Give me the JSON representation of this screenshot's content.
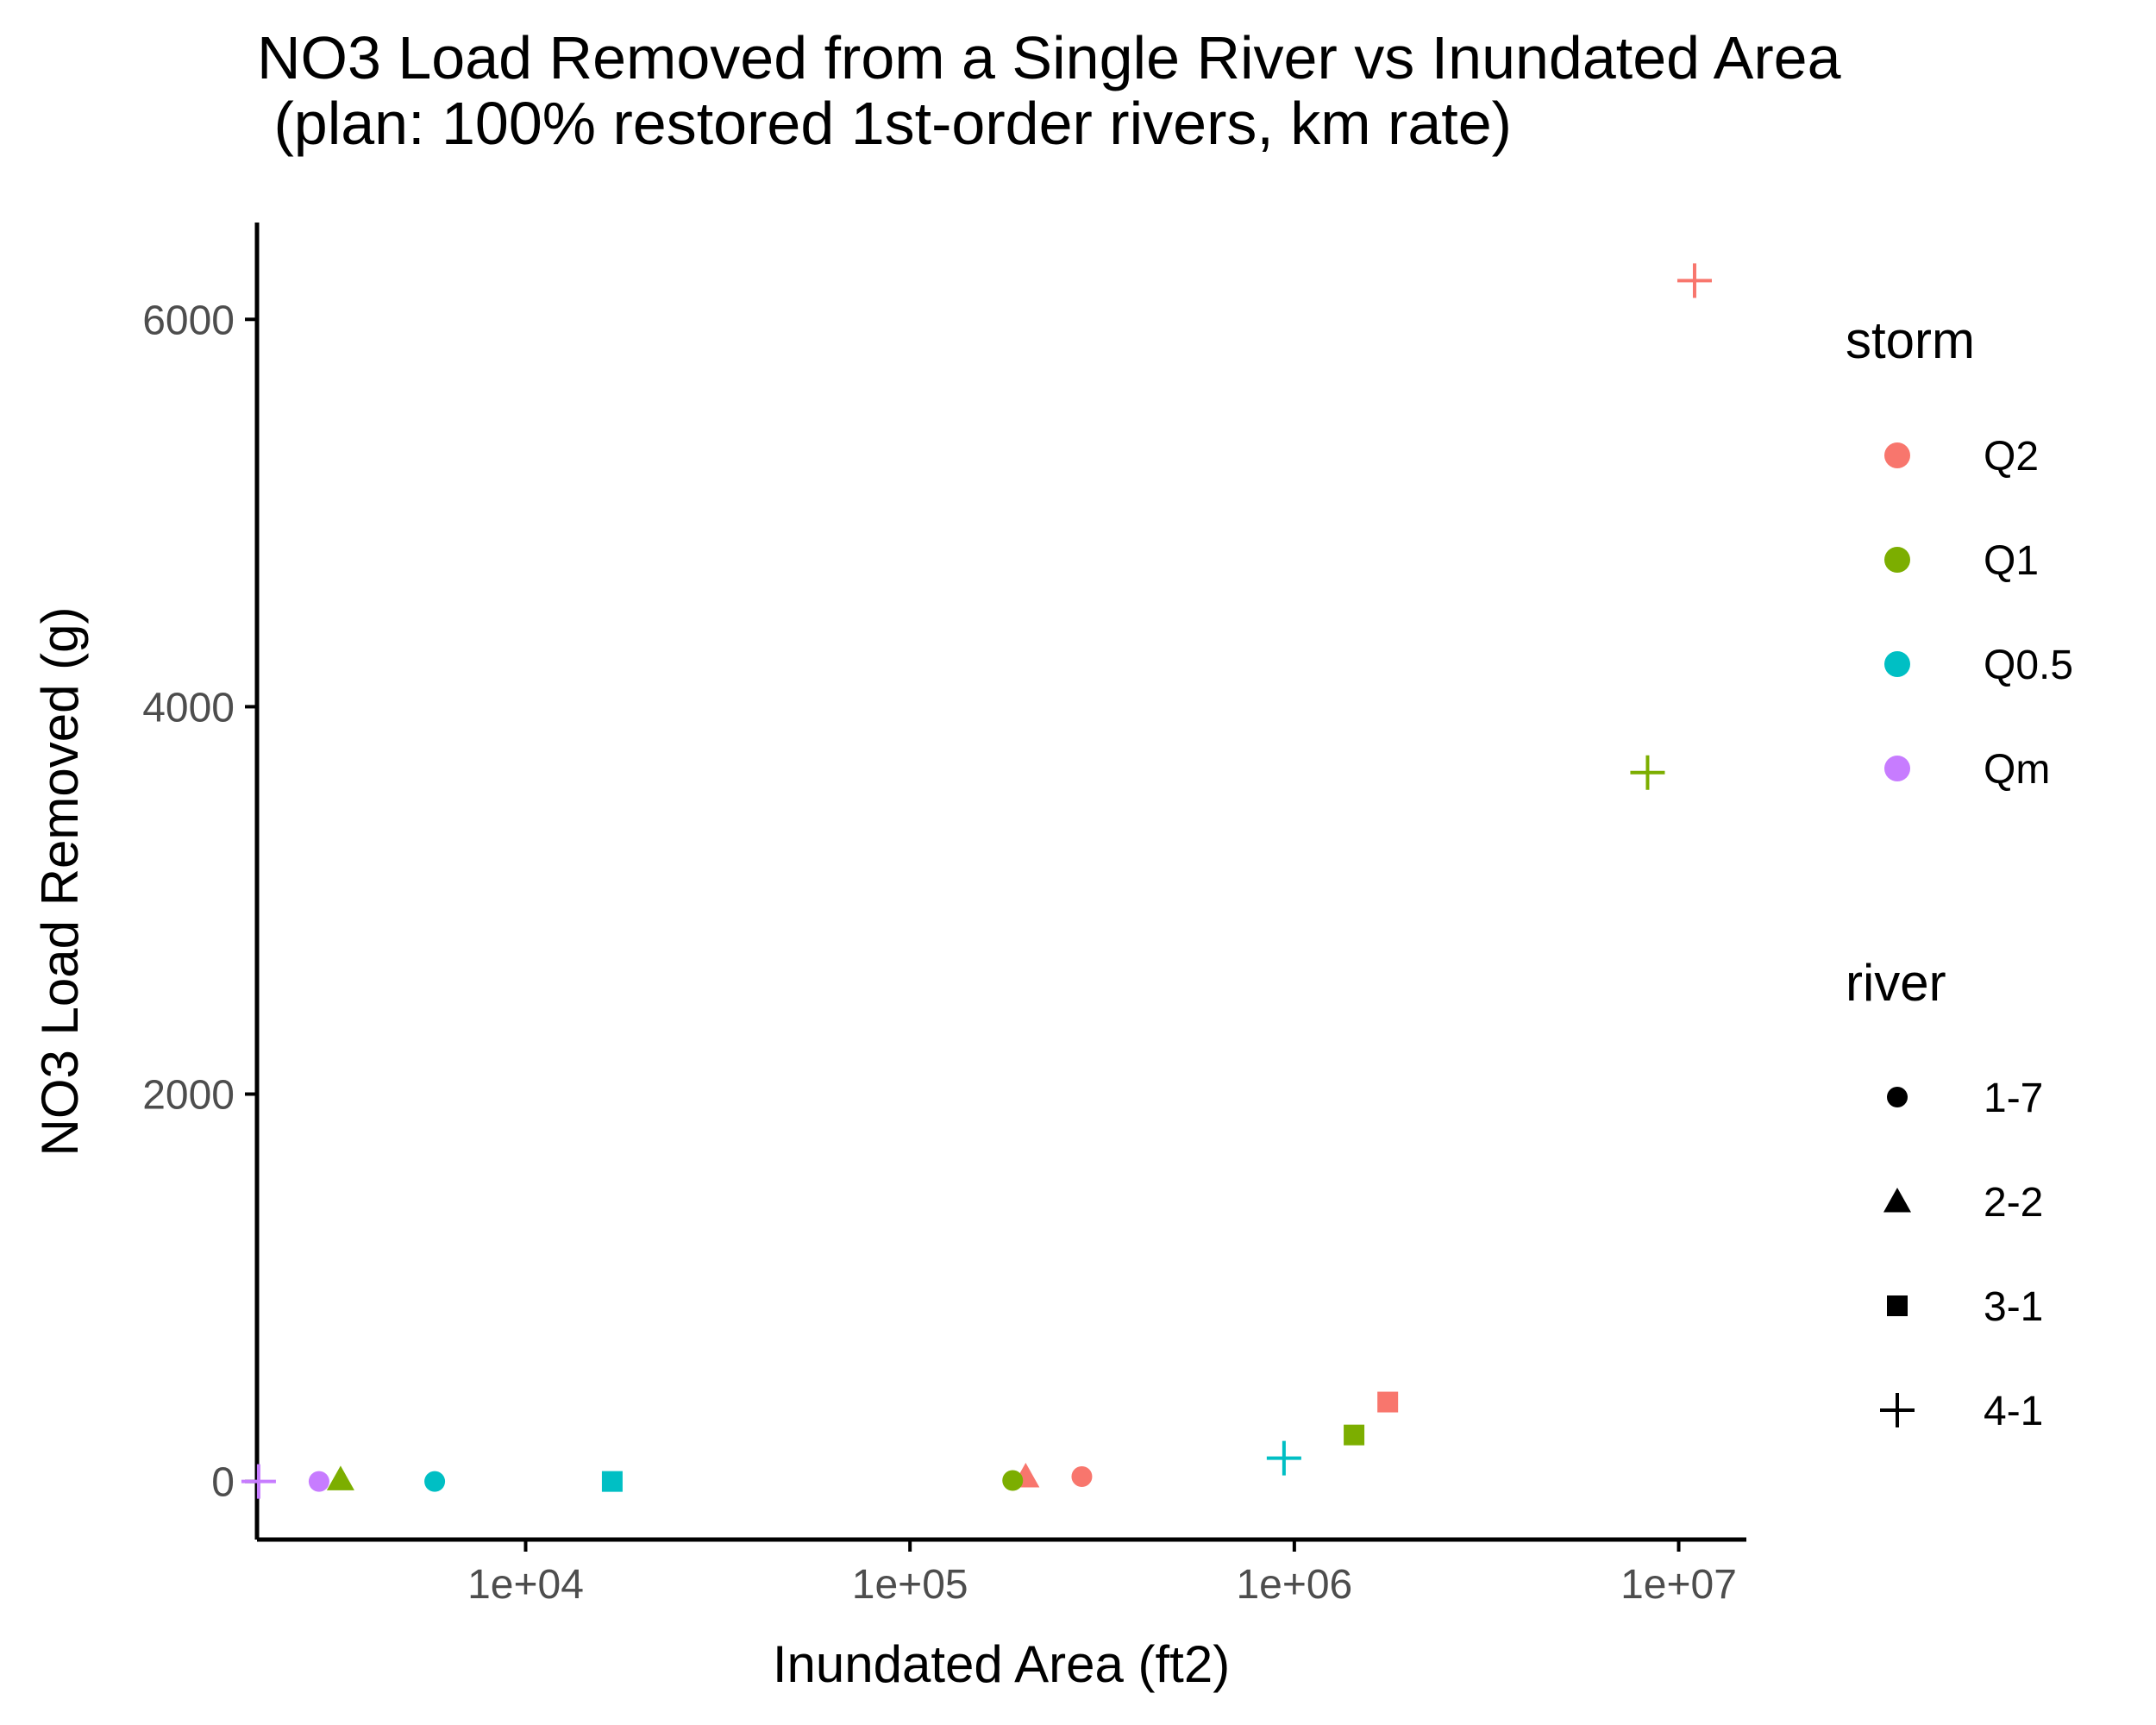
{
  "chart_data": {
    "type": "scatter",
    "title": "NO3 Load Removed from a Single River vs Inundated Area\n (plan: 100% restored 1st-order rivers, km rate)",
    "xlabel": "Inundated Area (ft2)",
    "ylabel": "NO3 Load Removed (g)",
    "x_scale": "log10",
    "xlim": [
      2000,
      15000000
    ],
    "ylim": [
      -300,
      6500
    ],
    "x_ticks": [
      10000,
      100000,
      1000000,
      10000000
    ],
    "x_tick_labels": [
      "1e+04",
      "1e+05",
      "1e+06",
      "1e+07"
    ],
    "y_ticks": [
      0,
      2000,
      4000,
      6000
    ],
    "y_tick_labels": [
      "0",
      "2000",
      "4000",
      "6000"
    ],
    "grid": false,
    "legend_position": "right",
    "colors": {
      "Q2": "#F8766D",
      "Q1": "#7CAE00",
      "Q0.5": "#00BFC4",
      "Qm": "#C77CFF"
    },
    "legends": [
      {
        "title": "storm",
        "aesthetic": "color",
        "entries": [
          {
            "label": "Q2",
            "color": "#F8766D"
          },
          {
            "label": "Q1",
            "color": "#7CAE00"
          },
          {
            "label": "Q0.5",
            "color": "#00BFC4"
          },
          {
            "label": "Qm",
            "color": "#C77CFF"
          }
        ]
      },
      {
        "title": "river",
        "aesthetic": "shape",
        "entries": [
          {
            "label": "1-7",
            "shape": "circle"
          },
          {
            "label": "2-2",
            "shape": "triangle"
          },
          {
            "label": "3-1",
            "shape": "square"
          },
          {
            "label": "4-1",
            "shape": "plus"
          }
        ]
      }
    ],
    "points": [
      {
        "storm": "Q2",
        "river": "1-7",
        "x": 280000,
        "y": 25
      },
      {
        "storm": "Q2",
        "river": "2-2",
        "x": 200000,
        "y": 25
      },
      {
        "storm": "Q2",
        "river": "3-1",
        "x": 1750000,
        "y": 410
      },
      {
        "storm": "Q2",
        "river": "4-1",
        "x": 11000000,
        "y": 6200
      },
      {
        "storm": "Q1",
        "river": "1-7",
        "x": 185000,
        "y": 5
      },
      {
        "storm": "Q1",
        "river": "2-2",
        "x": 3300,
        "y": 10
      },
      {
        "storm": "Q1",
        "river": "3-1",
        "x": 1430000,
        "y": 240
      },
      {
        "storm": "Q1",
        "river": "4-1",
        "x": 8300000,
        "y": 3660
      },
      {
        "storm": "Q0.5",
        "river": "1-7",
        "x": 5800,
        "y": 0
      },
      {
        "storm": "Q0.5",
        "river": "3-1",
        "x": 16800,
        "y": 0
      },
      {
        "storm": "Q0.5",
        "river": "4-1",
        "x": 940000,
        "y": 120
      },
      {
        "storm": "Qm",
        "river": "1-7",
        "x": 2900,
        "y": 0
      },
      {
        "storm": "Qm",
        "river": "4-1",
        "x": 2020,
        "y": 0
      }
    ]
  }
}
